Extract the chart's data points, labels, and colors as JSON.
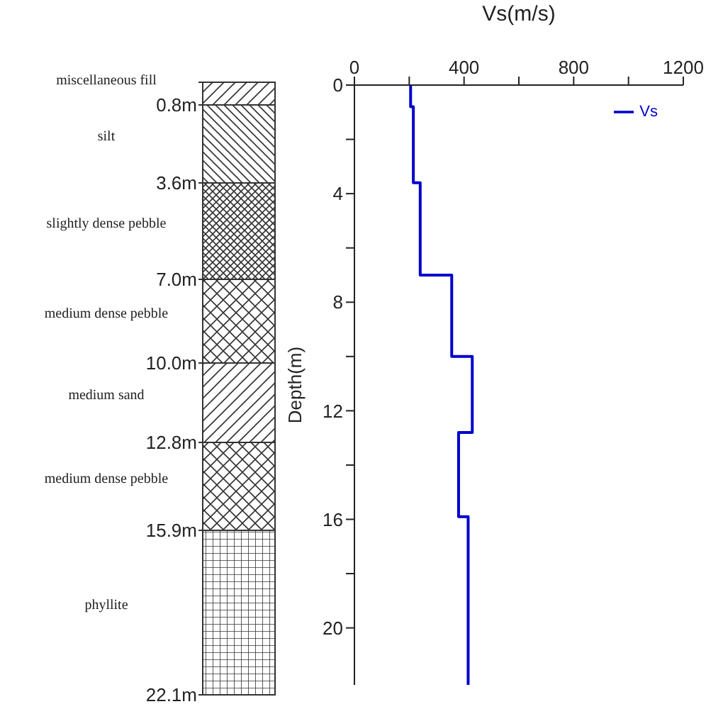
{
  "chart_data": [
    {
      "type": "other",
      "categories": [
        "miscellaneous fill",
        "silt",
        "slightly dense pebble",
        "medium dense pebble",
        "medium sand",
        "medium dense pebble",
        "phyllite"
      ],
      "annotations": [
        "0.8m",
        "3.6m",
        "7.0m",
        "10.0m",
        "12.8m",
        "15.9m",
        "22.1m"
      ]
    },
    {
      "type": "line",
      "xlabel": "Vs(m/s)",
      "ylabel": "Depth(m)",
      "xlim": [
        0,
        1200
      ],
      "xticks": [
        0,
        {
          "value": 200,
          "label": null
        },
        400,
        {
          "value": 600,
          "label": null
        },
        800,
        {
          "value": 1000,
          "label": null
        },
        1200
      ],
      "ylim": [
        22.1,
        0
      ],
      "yticks": [
        0,
        {
          "value": 2,
          "label": null
        },
        4,
        {
          "value": 6,
          "label": null
        },
        8,
        {
          "value": 10,
          "label": null
        },
        12,
        {
          "value": 14,
          "label": null
        },
        16,
        {
          "value": 18,
          "label": null
        },
        20
      ],
      "legend": "top right",
      "series": [
        {
          "name": "Vs",
          "color": "#0000cc",
          "x": [
            205,
            205,
            215,
            215,
            240,
            240,
            355,
            355,
            430,
            430,
            380,
            380,
            415,
            415
          ],
          "values": [
            0,
            0.8,
            0.8,
            3.6,
            3.6,
            7.0,
            7.0,
            10.0,
            10.0,
            12.8,
            12.8,
            15.9,
            15.9,
            22.1
          ]
        }
      ]
    }
  ]
}
